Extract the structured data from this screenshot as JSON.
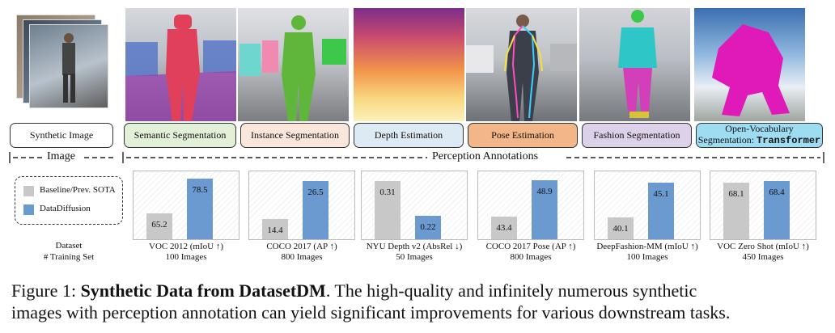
{
  "tasks": [
    {
      "label": "Synthetic Image",
      "color": "#ffffff"
    },
    {
      "label": "Semantic Segmentation",
      "color": "#e3f0d8"
    },
    {
      "label": "Instance Segmentation",
      "color": "#fbe6dc"
    },
    {
      "label": "Depth Estimation",
      "color": "#dde9f3"
    },
    {
      "label": "Pose Estimation",
      "color": "#f2b688"
    },
    {
      "label": "Fashion Segmentation",
      "color": "#ddd1ea"
    },
    {
      "label": "Open-Vocabulary",
      "label2": "Segmentation: ",
      "label3": "Transformer",
      "color": "#9edcf2"
    }
  ],
  "sections": {
    "image": "Image",
    "perception": "Perception Annotations"
  },
  "legend": {
    "baseline": "Baseline/Prev. SOTA",
    "datadiffusion": "DataDiffusion",
    "baseline_color": "#c8c8c8",
    "dd_color": "#6b9ad0"
  },
  "left_labels": {
    "dataset": "Dataset",
    "training": "# Training Set"
  },
  "chart_data": [
    {
      "type": "bar",
      "categories": [
        "Baseline/Prev. SOTA",
        "DataDiffusion"
      ],
      "values": [
        65.2,
        78.5
      ],
      "dataset": "VOC 2012 (mIoU ↑)",
      "training": "100 Images",
      "ylim": [
        55,
        82
      ]
    },
    {
      "type": "bar",
      "categories": [
        "Baseline/Prev. SOTA",
        "DataDiffusion"
      ],
      "values": [
        14.4,
        26.5
      ],
      "dataset": "COCO 2017 (AP ↑)",
      "training": "800 Images",
      "ylim": [
        8,
        30
      ]
    },
    {
      "type": "bar",
      "categories": [
        "Baseline/Prev. SOTA",
        "DataDiffusion"
      ],
      "values": [
        0.31,
        0.22
      ],
      "dataset": "NYU Depth v2 (AbsRel ↓)",
      "training": "50 Images",
      "ylim": [
        0.16,
        0.34
      ]
    },
    {
      "type": "bar",
      "categories": [
        "Baseline/Prev. SOTA",
        "DataDiffusion"
      ],
      "values": [
        43.4,
        48.9
      ],
      "dataset": "COCO 2017 Pose (AP ↑)",
      "training": "800 Images",
      "ylim": [
        40,
        50.5
      ]
    },
    {
      "type": "bar",
      "categories": [
        "Baseline/Prev. SOTA",
        "DataDiffusion"
      ],
      "values": [
        40.1,
        45.1
      ],
      "dataset": "DeepFashion-MM (mIoU ↑)",
      "training": "100 Images",
      "ylim": [
        37,
        47
      ]
    },
    {
      "type": "bar",
      "categories": [
        "Baseline/Prev. SOTA",
        "DataDiffusion"
      ],
      "values": [
        68.1,
        68.4
      ],
      "dataset": "VOC Zero Shot (mIoU ↑)",
      "training": "450 Images",
      "ylim": [
        60,
        70
      ]
    }
  ],
  "caption": {
    "prefix": "Figure 1: ",
    "bold": "Synthetic Data from DatasetDM",
    "rest1": ". The high-quality and infinitely numerous synthetic",
    "line2": "images with perception annotation can yield significant improvements for various downstream tasks."
  }
}
